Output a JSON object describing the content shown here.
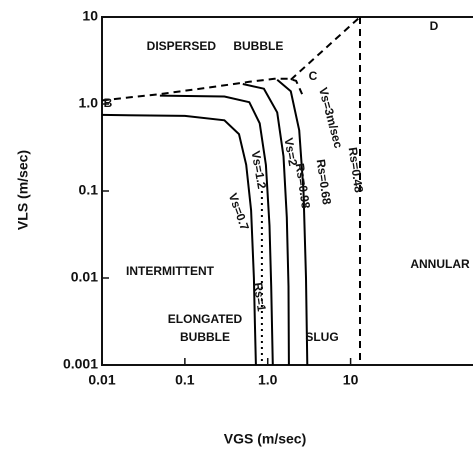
{
  "chart_data": {
    "type": "line",
    "log_x": true,
    "log_y": true,
    "xlabel": "VGS (m/sec)",
    "ylabel": "VLS (m/sec)",
    "xlim": [
      0.01,
      300
    ],
    "ylim": [
      0.001,
      10
    ],
    "xticks": [
      0.01,
      0.1,
      {
        "value": 1,
        "label": "1.0"
      },
      10
    ],
    "yticks": [
      0.001,
      0.01,
      0.1,
      {
        "value": 1,
        "label": "1.0"
      },
      10
    ],
    "series": [
      {
        "style": "dashed",
        "color": "#000000",
        "x": [
          0.01,
          0.05,
          0.2,
          0.6,
          1.2,
          1.8,
          2.2,
          2.6
        ],
        "values": [
          1.1,
          1.3,
          1.55,
          1.8,
          1.95,
          1.95,
          1.85,
          1.3
        ]
      },
      {
        "style": "dashed",
        "color": "#000000",
        "x": [
          1.9,
          13
        ],
        "values": [
          1.9,
          10
        ]
      },
      {
        "style": "dashed",
        "color": "#000000",
        "x": [
          13,
          13
        ],
        "values": [
          10,
          0.001
        ]
      },
      {
        "style": "solid",
        "color": "#000000",
        "x": [
          0.01,
          0.1,
          0.3,
          0.45,
          0.55,
          0.63,
          0.68,
          0.7,
          0.72
        ],
        "values": [
          0.75,
          0.73,
          0.65,
          0.45,
          0.2,
          0.06,
          0.01,
          0.003,
          0.001
        ]
      },
      {
        "style": "solid",
        "color": "#000000",
        "x": [
          0.05,
          0.3,
          0.6,
          0.8,
          0.95,
          1.05,
          1.1,
          1.15
        ],
        "values": [
          1.25,
          1.22,
          1.05,
          0.6,
          0.2,
          0.04,
          0.008,
          0.001
        ]
      },
      {
        "style": "solid",
        "color": "#000000",
        "x": [
          0.5,
          0.9,
          1.3,
          1.55,
          1.7,
          1.78,
          1.8
        ],
        "values": [
          1.7,
          1.5,
          0.8,
          0.25,
          0.05,
          0.008,
          0.001
        ]
      },
      {
        "style": "solid",
        "color": "#000000",
        "x": [
          1.3,
          1.9,
          2.4,
          2.7,
          2.9,
          3.0
        ],
        "values": [
          1.9,
          1.4,
          0.5,
          0.1,
          0.01,
          0.001
        ]
      },
      {
        "style": "dotted",
        "color": "#000000",
        "x": [
          0.85,
          0.85
        ],
        "values": [
          0.1,
          0.001
        ]
      }
    ],
    "annotations": [
      "DISPERSED BUBBLE",
      "B",
      "C",
      "D",
      "INTERMITTENT",
      "ELONGATED",
      "BUBBLE",
      "SLUG",
      "ANNULAR",
      "Vs=0.7",
      "Rs=1",
      "Vs=1.2",
      "Rs=0.98",
      "Vs=2",
      "Rs=0.68",
      "Vs=3m/sec",
      "Rs=0.48"
    ]
  }
}
